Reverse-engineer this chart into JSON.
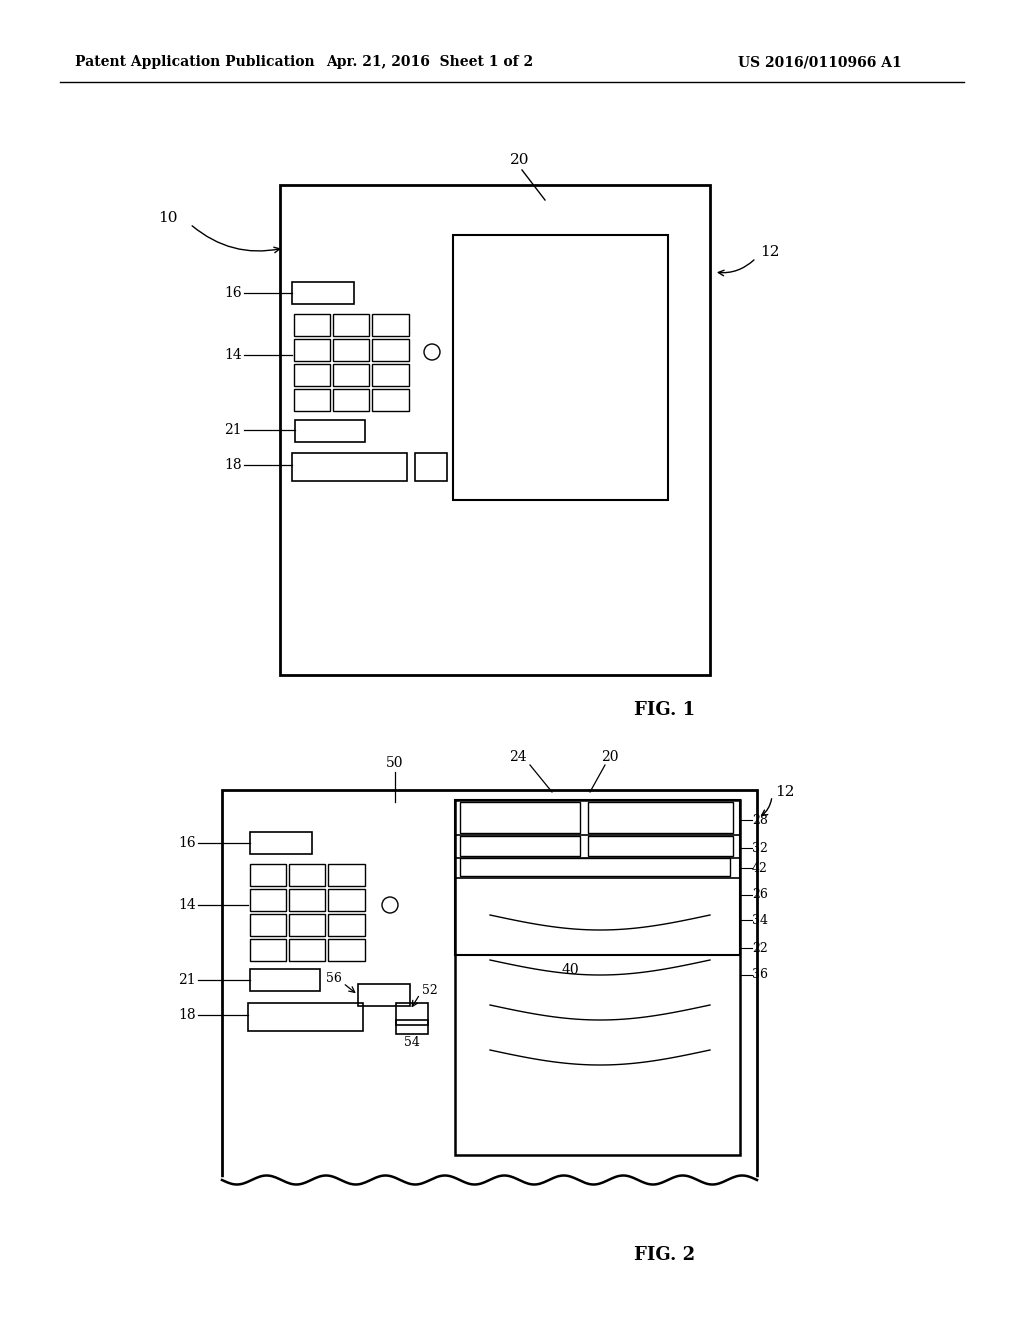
{
  "bg_color": "#ffffff",
  "line_color": "#000000",
  "header_left": "Patent Application Publication",
  "header_mid": "Apr. 21, 2016  Sheet 1 of 2",
  "header_right": "US 2016/0110966 A1"
}
